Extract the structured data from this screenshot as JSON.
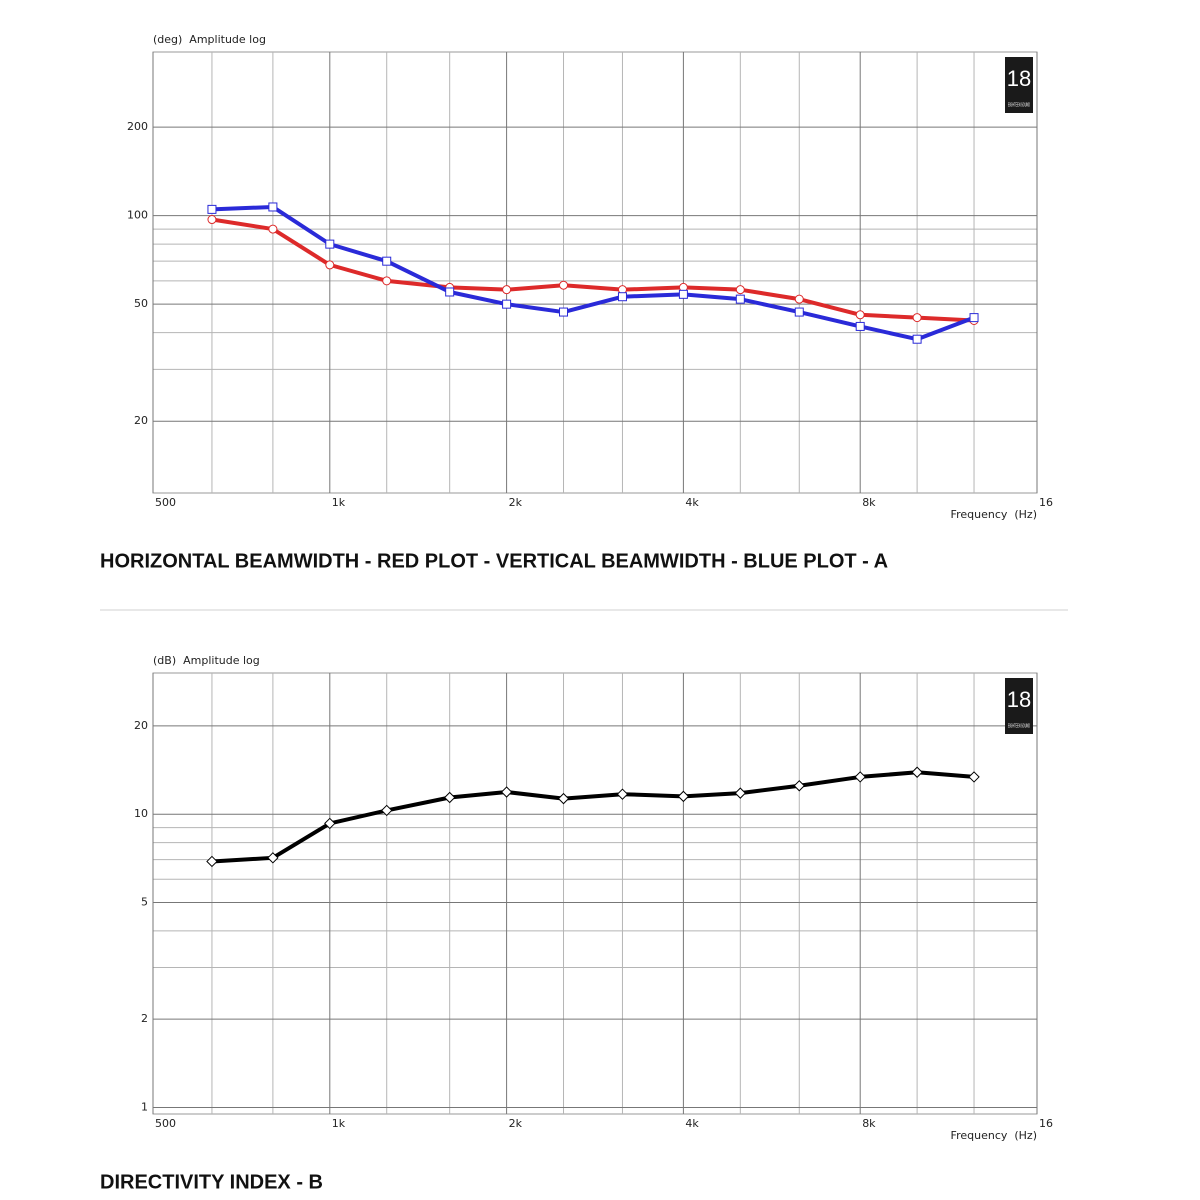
{
  "chart_data": [
    {
      "type": "line",
      "ylabel": "(deg)  Amplitude log",
      "xlabel": "Frequency  (Hz)",
      "caption": "HORIZONTAL BEAMWIDTH - RED PLOT - VERTICAL BEAMWIDTH - BLUE PLOT - A",
      "logo": {
        "number": "18",
        "text": "EIGHTEEN SOUND"
      },
      "xlog": true,
      "ylog": true,
      "grid": true,
      "x": [
        630,
        800,
        1000,
        1250,
        1600,
        2000,
        2500,
        3150,
        4000,
        5000,
        6300,
        8000,
        10000,
        12500
      ],
      "series": [
        {
          "color": "#dd2a2a",
          "marker": "circle",
          "values": [
            97,
            90,
            68,
            60,
            57,
            56,
            58,
            56,
            57,
            56,
            52,
            46,
            45,
            44
          ]
        },
        {
          "color": "#2a2ad8",
          "marker": "square",
          "values": [
            105,
            107,
            80,
            70,
            55,
            50,
            47,
            53,
            54,
            52,
            47,
            42,
            38,
            45
          ]
        }
      ],
      "xlim": [
        500,
        16000
      ],
      "xticks": [
        500,
        {
          "value": 1000,
          "label": "1k"
        },
        {
          "value": 2000,
          "label": "2k"
        },
        {
          "value": 4000,
          "label": "4k"
        },
        {
          "value": 8000,
          "label": "8k"
        },
        {
          "value": 16000,
          "label": "16"
        }
      ],
      "xminor": [
        630,
        800,
        1250,
        1600,
        2500,
        3150,
        5000,
        6300,
        10000,
        12500
      ],
      "ylim": [
        11.4,
        360
      ],
      "yticks": [
        20,
        50,
        100,
        200
      ],
      "yminor": [
        30,
        40,
        60,
        70,
        80,
        90
      ]
    },
    {
      "type": "line",
      "ylabel": "(dB)  Amplitude log",
      "xlabel": "Frequency  (Hz)",
      "caption": "DIRECTIVITY INDEX - B",
      "logo": {
        "number": "18",
        "text": "EIGHTEEN SOUND"
      },
      "xlog": true,
      "ylog": true,
      "grid": true,
      "x": [
        630,
        800,
        1000,
        1250,
        1600,
        2000,
        2500,
        3150,
        4000,
        5000,
        6300,
        8000,
        10000,
        12500
      ],
      "series": [
        {
          "color": "#000000",
          "marker": "diamond",
          "values": [
            6.9,
            7.1,
            9.3,
            10.3,
            11.4,
            11.9,
            11.3,
            11.7,
            11.5,
            11.8,
            12.5,
            13.4,
            13.9,
            13.4
          ]
        }
      ],
      "xlim": [
        500,
        16000
      ],
      "xticks": [
        500,
        {
          "value": 1000,
          "label": "1k"
        },
        {
          "value": 2000,
          "label": "2k"
        },
        {
          "value": 4000,
          "label": "4k"
        },
        {
          "value": 8000,
          "label": "8k"
        },
        {
          "value": 16000,
          "label": "16"
        }
      ],
      "xminor": [
        630,
        800,
        1250,
        1600,
        2500,
        3150,
        5000,
        6300,
        10000,
        12500
      ],
      "ylim": [
        0.95,
        30.3
      ],
      "yticks": [
        1,
        2,
        5,
        10,
        20
      ],
      "yminor": [
        3,
        4,
        6,
        7,
        8,
        9
      ]
    }
  ]
}
